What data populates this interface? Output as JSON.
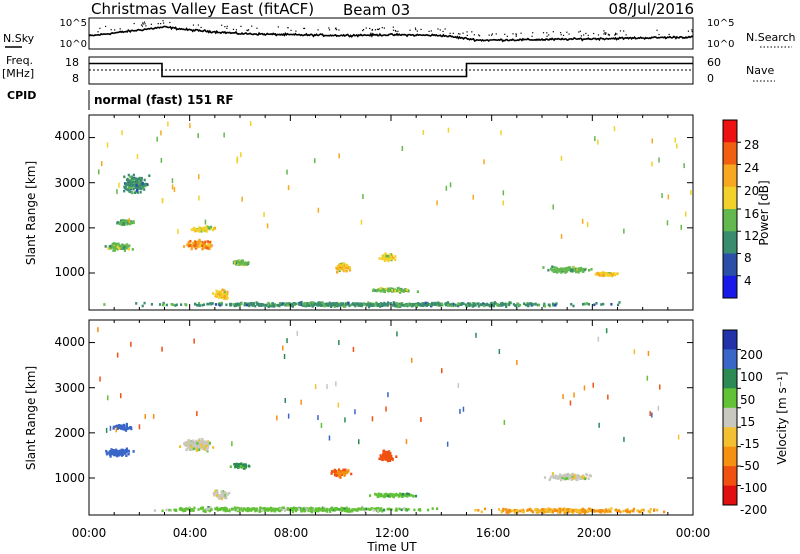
{
  "header": {
    "station": "Christmas Valley East (fitACF)",
    "beam": "Beam 03",
    "date": "08/Jul/2016"
  },
  "noise_panel": {
    "left_label": "N.Sky",
    "right_label": "N.Search",
    "left_ticks": [
      "10^5",
      "10^0"
    ],
    "right_ticks": [
      "10^5",
      "10^0"
    ]
  },
  "freq_panel": {
    "left_label_1": "Freq.",
    "left_label_2": "[MHz]",
    "right_label": "Nave",
    "left_ticks": [
      "18",
      "8"
    ],
    "right_ticks": [
      "60",
      "0"
    ]
  },
  "cpid": {
    "label": "CPID",
    "mode": "normal (fast) 151 RF"
  },
  "x_axis": {
    "title": "Time UT",
    "ticks": [
      "00:00",
      "04:00",
      "08:00",
      "12:00",
      "16:00",
      "20:00",
      "00:00"
    ]
  },
  "y_axis": {
    "title": "Slant Range [km]",
    "ticks": [
      "4000",
      "3000",
      "2000",
      "1000"
    ]
  },
  "power_scale": {
    "title": "Power [dB]",
    "ticks": [
      "28",
      "24",
      "20",
      "16",
      "12",
      "8",
      "4"
    ],
    "colors": [
      "#ee1111",
      "#f06010",
      "#f7a820",
      "#f2d22a",
      "#63b850",
      "#3a8c6e",
      "#2b4fa8",
      "#1a1ae8"
    ]
  },
  "velocity_scale": {
    "title": "Velocity [m s⁻¹]",
    "ticks": [
      "200",
      "100",
      "50",
      "15",
      "-15",
      "-50",
      "-100",
      "-200"
    ],
    "colors": [
      "#2233aa",
      "#3a66c8",
      "#2c8a55",
      "#62c236",
      "#c8c8c0",
      "#f2c030",
      "#f59010",
      "#f05010",
      "#e01010"
    ]
  },
  "chart_data": {
    "type": "heatmap",
    "title": "Christmas Valley East (fitACF) Beam 03 08/Jul/2016",
    "xlabel": "Time UT",
    "ylabel": "Slant Range [km]",
    "xlim": [
      0,
      24
    ],
    "ylim": [
      180,
      4500
    ],
    "noise": {
      "scale": "log",
      "range": [
        1,
        100000
      ],
      "sky_level": [
        [
          0,
          2.0
        ],
        [
          3,
          3.5
        ],
        [
          4,
          3.0
        ],
        [
          6,
          2.4
        ],
        [
          8,
          2.2
        ],
        [
          10,
          2.1
        ],
        [
          12,
          2.2
        ],
        [
          14,
          2.1
        ],
        [
          15.5,
          1.3
        ],
        [
          18,
          1.4
        ],
        [
          21,
          1.6
        ],
        [
          23.5,
          1.8
        ]
      ]
    },
    "frequency_mhz": [
      [
        0,
        15.5
      ],
      [
        2.9,
        15.5
      ],
      [
        2.9,
        10.5
      ],
      [
        15,
        10.5
      ],
      [
        15,
        15.5
      ],
      [
        24,
        15.5
      ]
    ],
    "power_patches": [
      {
        "t": 1.1,
        "r": 1600,
        "dt": 1.4,
        "dr": 220,
        "value": 13
      },
      {
        "t": 4.3,
        "r": 1650,
        "dt": 1.5,
        "dr": 250,
        "value": 24
      },
      {
        "t": 4.5,
        "r": 2000,
        "dt": 1.3,
        "dr": 150,
        "value": 18
      },
      {
        "t": 6.0,
        "r": 1250,
        "dt": 0.9,
        "dr": 140,
        "value": 14
      },
      {
        "t": 5.2,
        "r": 550,
        "dt": 0.8,
        "dr": 300,
        "value": 20
      },
      {
        "t": 1.8,
        "r": 3000,
        "dt": 1.2,
        "dr": 500,
        "value": 10
      },
      {
        "t": 1.4,
        "r": 2150,
        "dt": 0.9,
        "dr": 150,
        "value": 12
      },
      {
        "t": 10.0,
        "r": 1150,
        "dt": 1.0,
        "dr": 230,
        "value": 20
      },
      {
        "t": 11.8,
        "r": 1380,
        "dt": 0.8,
        "dr": 200,
        "value": 18
      },
      {
        "t": 12.0,
        "r": 650,
        "dt": 2.5,
        "dr": 120,
        "value": 14
      },
      {
        "t": 19.0,
        "r": 1100,
        "dt": 2.3,
        "dr": 180,
        "value": 13
      },
      {
        "t": 20.5,
        "r": 1000,
        "dt": 1.4,
        "dr": 100,
        "value": 20
      },
      {
        "t": 11.5,
        "r": 330,
        "dt": 23.0,
        "dr": 120,
        "value": 10
      }
    ],
    "velocity_patches": [
      {
        "t": 1.1,
        "r": 1600,
        "dt": 1.4,
        "dr": 220,
        "value": 150
      },
      {
        "t": 1.3,
        "r": 2150,
        "dt": 0.9,
        "dr": 150,
        "value": 150
      },
      {
        "t": 4.3,
        "r": 1750,
        "dt": 1.6,
        "dr": 350,
        "value": 0
      },
      {
        "t": 6.0,
        "r": 1300,
        "dt": 1.0,
        "dr": 150,
        "value": 60
      },
      {
        "t": 5.2,
        "r": 650,
        "dt": 0.8,
        "dr": 300,
        "value": 0
      },
      {
        "t": 10.0,
        "r": 1150,
        "dt": 1.0,
        "dr": 230,
        "value": -100
      },
      {
        "t": 11.8,
        "r": 1500,
        "dt": 0.8,
        "dr": 300,
        "value": -150
      },
      {
        "t": 12.0,
        "r": 650,
        "dt": 2.5,
        "dr": 120,
        "value": 40
      },
      {
        "t": 19.0,
        "r": 1050,
        "dt": 2.3,
        "dr": 180,
        "value": 0
      },
      {
        "t": 8.0,
        "r": 330,
        "dt": 14.0,
        "dr": 120,
        "value": 30
      },
      {
        "t": 19.0,
        "r": 300,
        "dt": 9.0,
        "dr": 120,
        "value": -50
      }
    ]
  }
}
